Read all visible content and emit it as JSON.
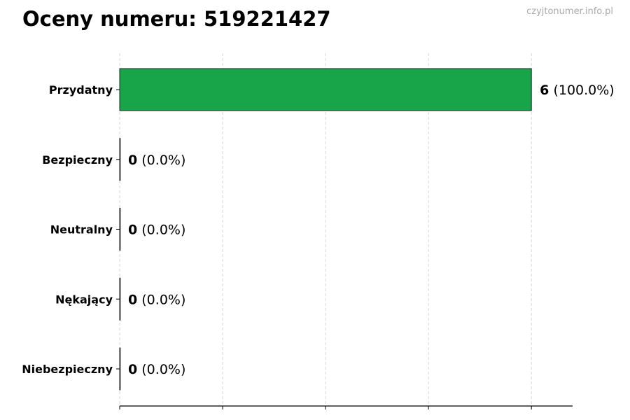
{
  "title": "Oceny numeru: 519221427",
  "watermark": "czyjtonumer.info.pl",
  "chart_data": {
    "type": "bar",
    "orientation": "horizontal",
    "categories": [
      "Przydatny",
      "Bezpieczny",
      "Neutralny",
      "Nękający",
      "Niebezpieczny"
    ],
    "values": [
      6,
      0,
      0,
      0,
      0
    ],
    "data_labels": [
      {
        "count": "6",
        "percent": "(100.0%)"
      },
      {
        "count": "0",
        "percent": "(0.0%)"
      },
      {
        "count": "0",
        "percent": "(0.0%)"
      },
      {
        "count": "0",
        "percent": "(0.0%)"
      },
      {
        "count": "0",
        "percent": "(0.0%)"
      }
    ],
    "bar_colors": [
      "#18a54a",
      "#18a54a",
      "#18a54a",
      "#18a54a",
      "#18a54a"
    ],
    "xlim": [
      0,
      6.6
    ],
    "x_ticks": [
      0,
      1.5,
      3,
      4.5,
      6
    ],
    "x_tick_labels_shown": false,
    "grid": "vertical dashed",
    "xlabel": "",
    "ylabel": ""
  }
}
